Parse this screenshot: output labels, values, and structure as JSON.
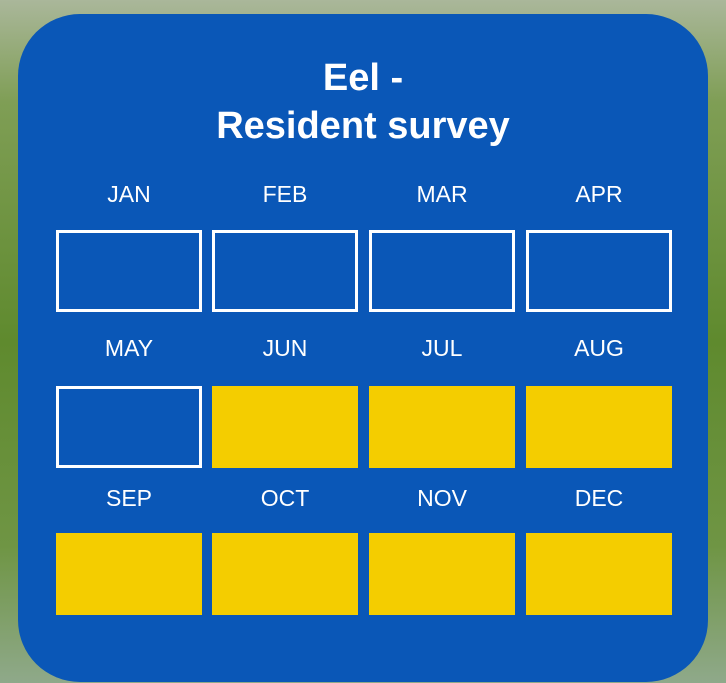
{
  "card": {
    "title_lines": [
      "Eel -",
      "Resident survey"
    ],
    "months": [
      {
        "label": "JAN",
        "active": false
      },
      {
        "label": "FEB",
        "active": false
      },
      {
        "label": "MAR",
        "active": false
      },
      {
        "label": "APR",
        "active": false
      },
      {
        "label": "MAY",
        "active": false
      },
      {
        "label": "JUN",
        "active": true
      },
      {
        "label": "JUL",
        "active": true
      },
      {
        "label": "AUG",
        "active": true
      },
      {
        "label": "SEP",
        "active": true
      },
      {
        "label": "OCT",
        "active": true
      },
      {
        "label": "NOV",
        "active": true
      },
      {
        "label": "DEC",
        "active": true
      }
    ],
    "active_color": "#f4cd00",
    "card_color": "#0a57b7"
  }
}
